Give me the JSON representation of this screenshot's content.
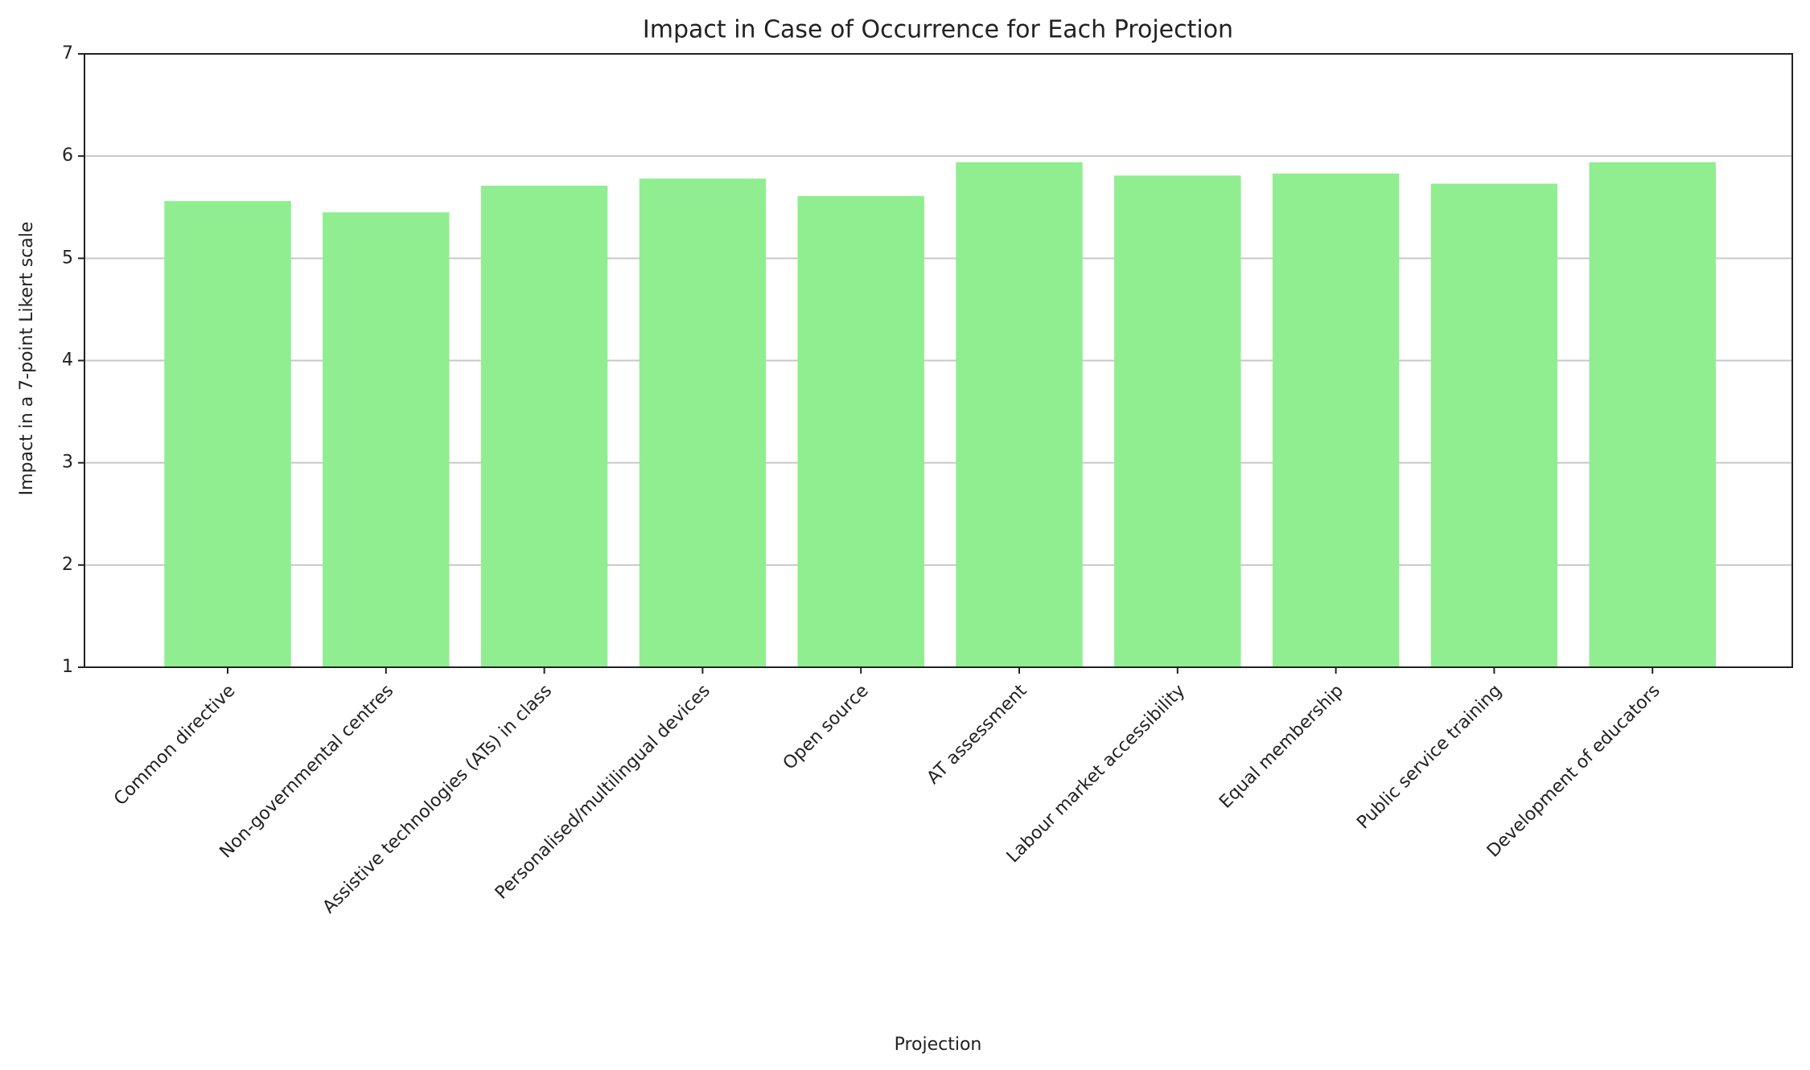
{
  "chart_data": {
    "type": "bar",
    "title": "Impact in Case of Occurrence for Each Projection",
    "x_label": "Projection",
    "y_label": "Impact in a 7-point Likert scale",
    "categories": [
      "Common directive",
      "Non-governmental centres",
      "Assistive technologies (ATs) in class",
      "Personalised/multilingual devices",
      "Open source",
      "AT assessment",
      "Labour market accessibility",
      "Equal membership",
      "Public service training",
      "Development of educators"
    ],
    "values": [
      5.56,
      5.45,
      5.71,
      5.78,
      5.61,
      5.94,
      5.81,
      5.83,
      5.73,
      5.94
    ],
    "color": "#90ee90",
    "ylim": [
      1,
      7
    ],
    "yticks": [
      1,
      2,
      3,
      4,
      5,
      6,
      7
    ],
    "grid": true
  }
}
